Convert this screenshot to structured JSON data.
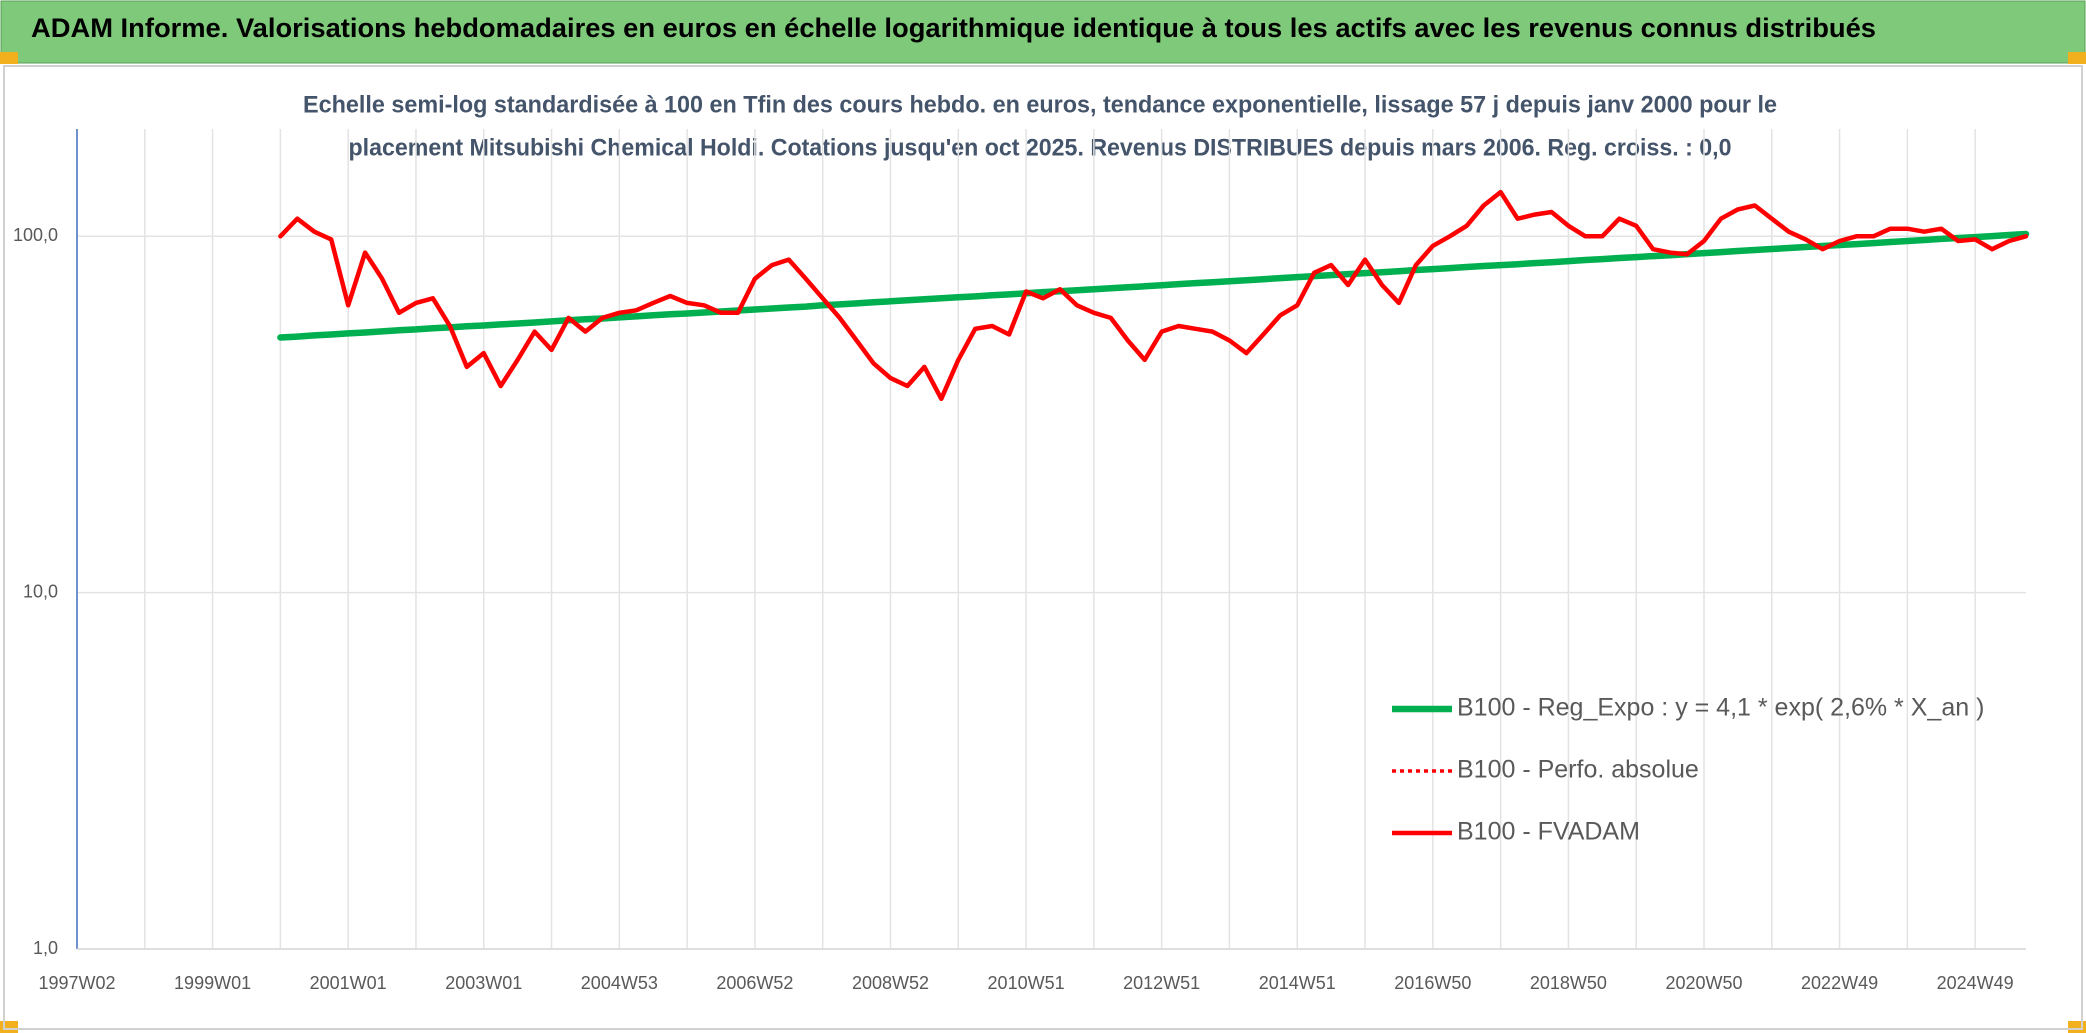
{
  "header": {
    "title": "ADAM Informe. Valorisations hebdomadaires en euros en échelle logarithmique identique à tous les actifs avec les revenus connus distribués"
  },
  "chart_data": {
    "type": "line",
    "subtitle_lines": [
      "Echelle semi-log standardisée à 100 en Tfin des cours hebdo. en euros, tendance exponentielle, lissage 57 j depuis janv 2000 pour le",
      "placement Mitsubishi Chemical Holdi. Cotations jusqu'en oct 2025. Revenus DISTRIBUES depuis mars 2006. Reg. croiss. : 0,0"
    ],
    "log_scale": true,
    "grid": true,
    "legend": "right",
    "ylim": [
      1,
      200
    ],
    "yticks": [
      {
        "value": 1,
        "label": "1,0"
      },
      {
        "value": 10,
        "label": "10,0"
      },
      {
        "value": 100,
        "label": "100,0"
      }
    ],
    "categories": [
      "1997W02",
      null,
      null,
      null,
      null,
      null,
      null,
      null,
      "1999W01",
      null,
      null,
      null,
      null,
      null,
      null,
      null,
      "2001W01",
      null,
      null,
      null,
      null,
      null,
      null,
      null,
      "2003W01",
      null,
      null,
      null,
      null,
      null,
      null,
      null,
      "2004W53",
      null,
      null,
      null,
      null,
      null,
      null,
      null,
      "2006W52",
      null,
      null,
      null,
      null,
      null,
      null,
      null,
      "2008W52",
      null,
      null,
      null,
      null,
      null,
      null,
      null,
      "2010W51",
      null,
      null,
      null,
      null,
      null,
      null,
      null,
      "2012W51",
      null,
      null,
      null,
      null,
      null,
      null,
      null,
      "2014W51",
      null,
      null,
      null,
      null,
      null,
      null,
      null,
      "2016W50",
      null,
      null,
      null,
      null,
      null,
      null,
      null,
      "2018W50",
      null,
      null,
      null,
      null,
      null,
      null,
      null,
      "2020W50",
      null,
      null,
      null,
      null,
      null,
      null,
      null,
      "2022W49",
      null,
      null,
      null,
      null,
      null,
      null,
      null,
      "2024W49",
      null,
      null,
      null
    ],
    "series": [
      {
        "name": "B100 - Reg_Expo : y = 4,1 * exp( 2,6% *  X_an )",
        "color": "#00b050",
        "style": "solid",
        "values": [
          null,
          null,
          null,
          null,
          null,
          null,
          null,
          null,
          null,
          null,
          null,
          null,
          52.0,
          52.3,
          52.7,
          53.0,
          53.4,
          53.7,
          54.1,
          54.5,
          54.8,
          55.2,
          55.5,
          55.9,
          56.2,
          56.6,
          56.9,
          57.3,
          57.7,
          58.1,
          58.5,
          58.8,
          59.2,
          59.6,
          60.0,
          60.4,
          60.7,
          61.1,
          61.5,
          61.9,
          62.3,
          62.7,
          63.1,
          63.5,
          64.0,
          64.4,
          64.8,
          65.3,
          65.7,
          66.1,
          66.6,
          67.0,
          67.4,
          67.8,
          68.3,
          68.7,
          69.2,
          69.7,
          70.1,
          70.6,
          71.0,
          71.5,
          71.9,
          72.4,
          72.9,
          73.4,
          73.9,
          74.3,
          74.8,
          75.3,
          75.8,
          76.3,
          76.8,
          77.3,
          77.8,
          78.3,
          78.8,
          79.3,
          79.8,
          80.4,
          80.9,
          81.4,
          82.0,
          82.5,
          83.0,
          83.5,
          84.1,
          84.6,
          85.2,
          85.8,
          86.3,
          86.9,
          87.4,
          88.0,
          88.5,
          89.1,
          89.7,
          90.3,
          90.9,
          91.5,
          92.1,
          92.7,
          93.3,
          93.9,
          94.5,
          95.1,
          95.7,
          96.4,
          97.0,
          97.6,
          98.3,
          98.9,
          99.5,
          100.1,
          100.8,
          101.5
        ]
      },
      {
        "name": "B100 - Perfo. absolue",
        "color": "#ff0000",
        "style": "dotted",
        "values": [
          null,
          null,
          null,
          null,
          null,
          null,
          null,
          null,
          null,
          null,
          null,
          null,
          100,
          112,
          103,
          98,
          64,
          90,
          76,
          61,
          65,
          67,
          56,
          43,
          47,
          38,
          45,
          54,
          48,
          59,
          54,
          59,
          61,
          62,
          65,
          68,
          65,
          64,
          61,
          61,
          76,
          83,
          86,
          76,
          67,
          59,
          51,
          44,
          40,
          38,
          43,
          35,
          45,
          55,
          56,
          53,
          70,
          67,
          71,
          64,
          61,
          59,
          51,
          45,
          54,
          56,
          55,
          54,
          51,
          47,
          53,
          60,
          64,
          79,
          83,
          73,
          86,
          73,
          65,
          83,
          94,
          100,
          107,
          122,
          133,
          112,
          115,
          117,
          107,
          100,
          100,
          112,
          107,
          92,
          90,
          89,
          97,
          112,
          119,
          122,
          112,
          103,
          98,
          92,
          97,
          100,
          100,
          105,
          105,
          103,
          105,
          97,
          98,
          92,
          97,
          100
        ]
      },
      {
        "name": "B100 - FVADAM",
        "color": "#ff0000",
        "style": "solid",
        "values": [
          null,
          null,
          null,
          null,
          null,
          null,
          null,
          null,
          null,
          null,
          null,
          null,
          100,
          112,
          103,
          98,
          64,
          90,
          76,
          61,
          65,
          67,
          56,
          43,
          47,
          38,
          45,
          54,
          48,
          59,
          54,
          59,
          61,
          62,
          65,
          68,
          65,
          64,
          61,
          61,
          76,
          83,
          86,
          76,
          67,
          59,
          51,
          44,
          40,
          38,
          43,
          35,
          45,
          55,
          56,
          53,
          70,
          67,
          71,
          64,
          61,
          59,
          51,
          45,
          54,
          56,
          55,
          54,
          51,
          47,
          53,
          60,
          64,
          79,
          83,
          73,
          86,
          73,
          65,
          83,
          94,
          100,
          107,
          122,
          133,
          112,
          115,
          117,
          107,
          100,
          100,
          112,
          107,
          92,
          90,
          89,
          97,
          112,
          119,
          122,
          112,
          103,
          98,
          92,
          97,
          100,
          100,
          105,
          105,
          103,
          105,
          97,
          98,
          92,
          97,
          100
        ]
      }
    ]
  }
}
